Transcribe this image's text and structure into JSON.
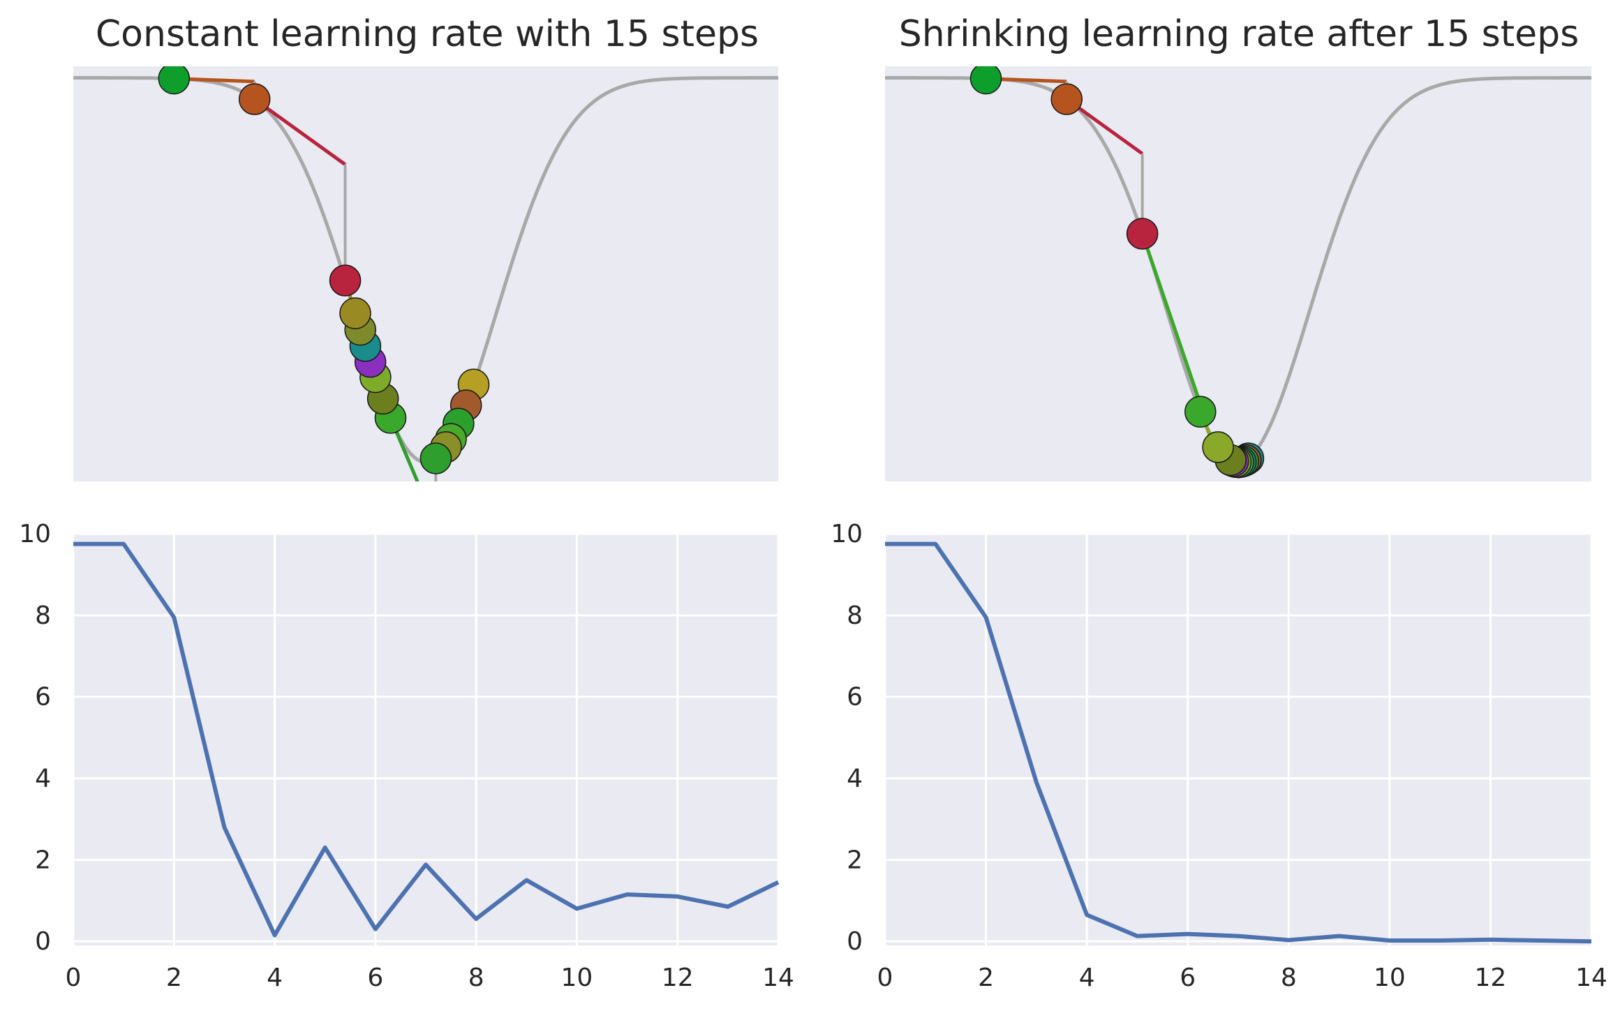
{
  "chart_data": [
    {
      "type": "line",
      "panel": "top-left",
      "title": "Constant learning rate with 15 steps",
      "xlim": [
        0,
        1.4
      ],
      "ylim": [
        -1.05,
        0.03
      ],
      "grid": false,
      "curve": {
        "description_free": true,
        "center": 0.7,
        "depth": 1.0
      },
      "steps_x": [
        0.2,
        0.36,
        0.54,
        0.56,
        0.57,
        0.58,
        0.59,
        0.6,
        0.615,
        0.63,
        0.72,
        0.74,
        0.75,
        0.765,
        0.78,
        0.795
      ],
      "point_colors": [
        "#0e9e2c",
        "#b5541f",
        "#b8233d",
        "#9a8a24",
        "#7f8a2a",
        "#1a8c8c",
        "#8a2fbf",
        "#7eab2a",
        "#6b7f1f",
        "#3aa82a",
        "#2e9e2e",
        "#8a8f2a",
        "#4aa82a",
        "#2ca02c",
        "#a05a2c",
        "#b5a024"
      ]
    },
    {
      "type": "line",
      "panel": "top-right",
      "title": "Shrinking learning rate after 15 steps",
      "xlim": [
        0,
        1.4
      ],
      "ylim": [
        -1.05,
        0.03
      ],
      "grid": false,
      "steps_x": [
        0.2,
        0.36,
        0.51,
        0.625,
        0.66,
        0.685,
        0.69,
        0.695,
        0.7,
        0.705,
        0.71,
        0.715,
        0.7,
        0.72,
        0.7,
        0.7
      ],
      "point_colors": [
        "#0e9e2c",
        "#b5541f",
        "#b8233d",
        "#3aa82a",
        "#8aa82a",
        "#6b7f1f",
        "#8a2fbf",
        "#7eab2a",
        "#4aa82a",
        "#1a8c8c",
        "#2ca02c",
        "#a05a2c",
        "#b5a024",
        "#1a8c8c",
        "#7f8a2a",
        "#6b7f1f"
      ]
    },
    {
      "type": "line",
      "panel": "bottom-left",
      "x": [
        0,
        1,
        2,
        3,
        4,
        5,
        6,
        7,
        8,
        9,
        10,
        11,
        12,
        13,
        14
      ],
      "y": [
        9.75,
        9.75,
        7.95,
        2.8,
        0.15,
        2.3,
        0.3,
        1.88,
        0.55,
        1.5,
        0.8,
        1.15,
        1.1,
        0.85,
        1.45
      ],
      "xlim": [
        0,
        14
      ],
      "ylim": [
        -0.1,
        10
      ],
      "xticks": [
        "0",
        "2",
        "4",
        "6",
        "8",
        "10",
        "12",
        "14"
      ],
      "yticks": [
        "0",
        "2",
        "4",
        "6",
        "8",
        "10"
      ],
      "grid": true,
      "color": "#4c72b0"
    },
    {
      "type": "line",
      "panel": "bottom-right",
      "x": [
        0,
        1,
        2,
        3,
        4,
        5,
        6,
        7,
        8,
        9,
        10,
        11,
        12,
        13,
        14
      ],
      "y": [
        9.75,
        9.75,
        7.95,
        3.9,
        0.65,
        0.13,
        0.18,
        0.13,
        0.03,
        0.13,
        0.02,
        0.02,
        0.04,
        0.02,
        0.0
      ],
      "xlim": [
        0,
        14
      ],
      "ylim": [
        -0.1,
        10
      ],
      "xticks": [
        "0",
        "2",
        "4",
        "6",
        "8",
        "10",
        "12",
        "14"
      ],
      "yticks": [
        "0",
        "2",
        "4",
        "6",
        "8",
        "10"
      ],
      "grid": true,
      "color": "#4c72b0"
    }
  ]
}
